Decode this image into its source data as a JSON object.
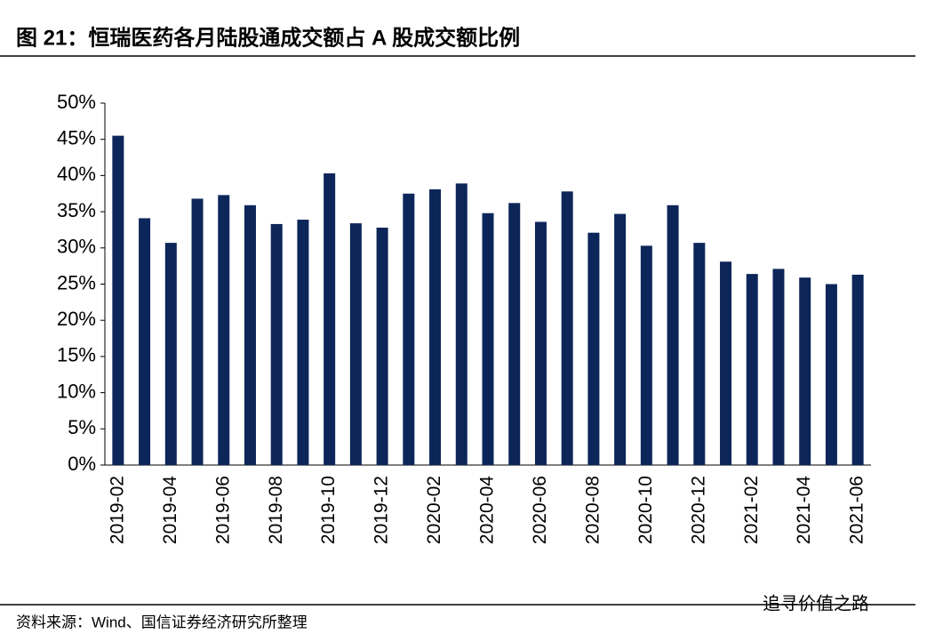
{
  "chart_data": {
    "type": "bar",
    "title": "图 21：恒瑞医药各月陆股通成交额占 A 股成交额比例",
    "source": "资料来源：Wind、国信证券经济研究所整理",
    "watermark": "追寻价值之路",
    "categories": [
      "2019-02",
      null,
      "2019-04",
      null,
      "2019-06",
      null,
      "2019-08",
      null,
      "2019-10",
      null,
      "2019-12",
      null,
      "2020-02",
      null,
      "2020-04",
      null,
      "2020-06",
      null,
      "2020-08",
      null,
      "2020-10",
      null,
      "2020-12",
      null,
      "2021-02",
      null,
      "2021-04",
      null,
      "2021-06"
    ],
    "values": [
      45.5,
      34.1,
      30.7,
      36.8,
      37.3,
      35.9,
      33.3,
      33.9,
      40.3,
      33.4,
      32.8,
      37.5,
      38.1,
      38.9,
      34.8,
      36.2,
      33.6,
      37.8,
      32.1,
      34.7,
      30.3,
      35.9,
      30.7,
      28.1,
      26.4,
      27.1,
      25.9,
      25.0,
      26.3
    ],
    "color": "#0c2659",
    "ylim": [
      0,
      50
    ],
    "yticks": [
      {
        "value": 0,
        "label": "0%"
      },
      {
        "value": 5,
        "label": "5%"
      },
      {
        "value": 10,
        "label": "10%"
      },
      {
        "value": 15,
        "label": "15%"
      },
      {
        "value": 20,
        "label": "20%"
      },
      {
        "value": 25,
        "label": "25%"
      },
      {
        "value": 30,
        "label": "30%"
      },
      {
        "value": 35,
        "label": "35%"
      },
      {
        "value": 40,
        "label": "40%"
      },
      {
        "value": 45,
        "label": "45%"
      },
      {
        "value": 50,
        "label": "50%"
      }
    ],
    "grid": false
  }
}
